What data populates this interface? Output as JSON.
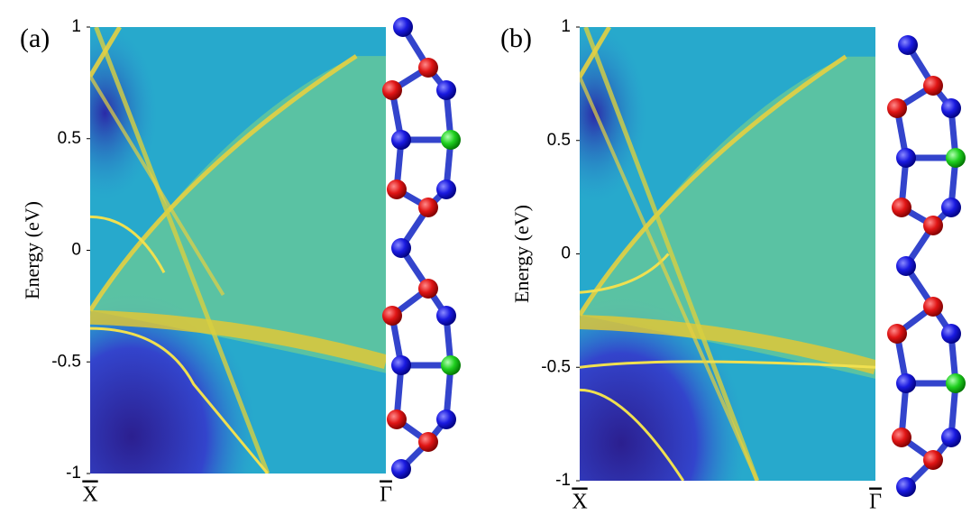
{
  "chart_data": [
    {
      "type": "band-structure",
      "panel_label": "(a)",
      "ylabel": "Energy (eV)",
      "categories": [
        "X",
        "Γ"
      ],
      "ylim": [
        -1,
        1
      ],
      "yticks": [
        -1,
        -0.5,
        0,
        0.5,
        1
      ]
    },
    {
      "type": "band-structure",
      "panel_label": "(b)",
      "ylabel": "Energy (eV)",
      "categories": [
        "X",
        "Γ"
      ],
      "ylim": [
        -1,
        1
      ],
      "yticks": [
        -1,
        -0.5,
        0,
        0.5,
        1
      ]
    }
  ]
}
